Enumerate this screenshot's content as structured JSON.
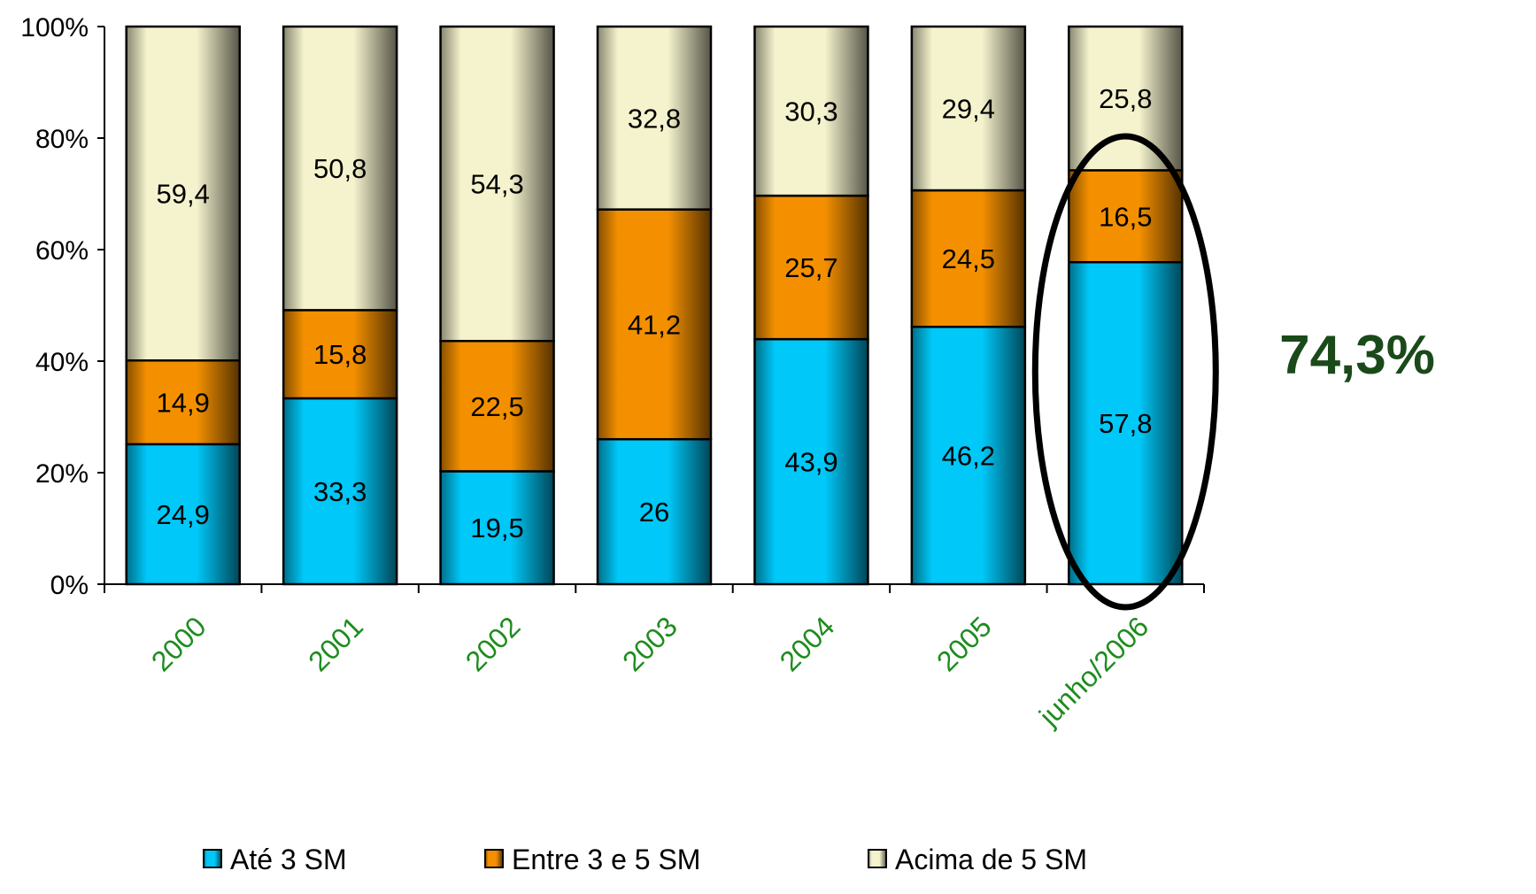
{
  "chart_data": {
    "type": "bar",
    "stacked": true,
    "percent_stacked": true,
    "categories": [
      "2000",
      "2001",
      "2002",
      "2003",
      "2004",
      "2005",
      "junho/2006"
    ],
    "series": [
      {
        "name": "Até 3 SM",
        "values": [
          24.9,
          33.3,
          19.5,
          26,
          43.9,
          46.2,
          57.8
        ],
        "labels": [
          "24,9",
          "33,3",
          "19,5",
          "26",
          "43,9",
          "46,2",
          "57,8"
        ],
        "color": "#00c8f8"
      },
      {
        "name": "Entre 3 e 5 SM",
        "values": [
          14.9,
          15.8,
          22.5,
          41.2,
          25.7,
          24.5,
          16.5
        ],
        "labels": [
          "14,9",
          "15,8",
          "22,5",
          "41,2",
          "25,7",
          "24,5",
          "16,5"
        ],
        "color": "#f49000"
      },
      {
        "name": "Acima de 5 SM",
        "values": [
          59.4,
          50.8,
          54.3,
          32.8,
          30.3,
          29.4,
          25.8
        ],
        "labels": [
          "59,4",
          "50,8",
          "54,3",
          "32,8",
          "30,3",
          "29,4",
          "25,8"
        ],
        "color": "#f5f3cd"
      }
    ],
    "y_ticks": [
      "0%",
      "20%",
      "40%",
      "60%",
      "80%",
      "100%"
    ],
    "ylim": [
      0,
      100
    ],
    "grid": false,
    "legend_position": "bottom",
    "annotation": {
      "text": "74,3%",
      "highlight_category": "junho/2006",
      "shape": "ellipse",
      "color": "#1a4a1a"
    },
    "tick_label_color": "#1e8c1e"
  }
}
